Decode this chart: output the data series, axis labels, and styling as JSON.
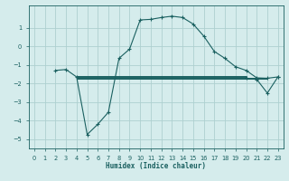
{
  "xlabel": "Humidex (Indice chaleur)",
  "bg_color": "#d5ecec",
  "grid_color": "#aed0d0",
  "line_color": "#1a6060",
  "xlim": [
    -0.5,
    23.5
  ],
  "ylim": [
    -5.5,
    2.2
  ],
  "xticks": [
    0,
    1,
    2,
    3,
    4,
    5,
    6,
    7,
    8,
    9,
    10,
    11,
    12,
    13,
    14,
    15,
    16,
    17,
    18,
    19,
    20,
    21,
    22,
    23
  ],
  "yticks": [
    1,
    0,
    -1,
    -2,
    -3,
    -4,
    -5
  ],
  "main_curve_x": [
    2,
    3,
    4,
    5,
    6,
    7,
    8,
    9,
    10,
    11,
    12,
    13,
    14,
    15,
    16,
    17,
    18,
    19,
    20,
    21,
    22,
    23
  ],
  "main_curve_y": [
    -1.3,
    -1.25,
    -1.65,
    -4.75,
    -4.2,
    -3.55,
    -0.65,
    -0.15,
    1.42,
    1.45,
    1.55,
    1.62,
    1.55,
    1.2,
    0.55,
    -0.28,
    -0.65,
    -1.1,
    -1.3,
    -1.7,
    -1.72,
    -1.65
  ],
  "flat_lines": [
    {
      "x": [
        4,
        20
      ],
      "y": [
        -1.58,
        -1.58
      ]
    },
    {
      "x": [
        4,
        20
      ],
      "y": [
        -1.65,
        -1.65
      ]
    },
    {
      "x": [
        4,
        22
      ],
      "y": [
        -1.7,
        -1.7
      ]
    },
    {
      "x": [
        4,
        22
      ],
      "y": [
        -1.75,
        -1.75
      ]
    }
  ],
  "v_curve_x": [
    20,
    21,
    22,
    23
  ],
  "v_curve_y": [
    -1.72,
    -1.78,
    -2.52,
    -1.65
  ]
}
